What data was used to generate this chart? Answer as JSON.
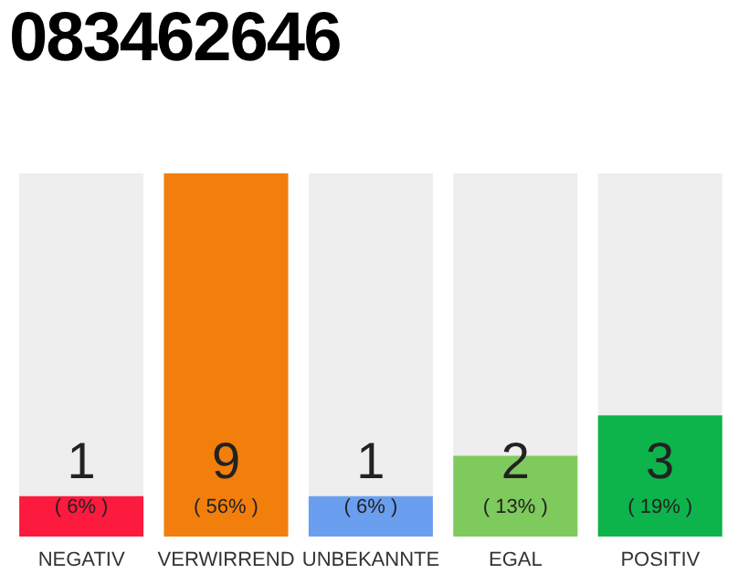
{
  "chart_data": {
    "type": "bar",
    "title": "083462646",
    "categories": [
      "NEGATIV",
      "VERWIRREND",
      "UNBEKANNTE",
      "EGAL",
      "POSITIV"
    ],
    "values": [
      1,
      9,
      1,
      2,
      3
    ],
    "colors": [
      "#fc1a3e",
      "#f27f0c",
      "#6a9ff0",
      "#7eca5d",
      "#0db34b"
    ],
    "ylim": [
      0,
      9
    ],
    "tick_labels": "x",
    "grid": false,
    "legend": false,
    "data_labels": true,
    "annotations": [
      "( 6% )",
      "( 56% )",
      "( 6% )",
      "( 13% )",
      "( 19% )"
    ]
  }
}
